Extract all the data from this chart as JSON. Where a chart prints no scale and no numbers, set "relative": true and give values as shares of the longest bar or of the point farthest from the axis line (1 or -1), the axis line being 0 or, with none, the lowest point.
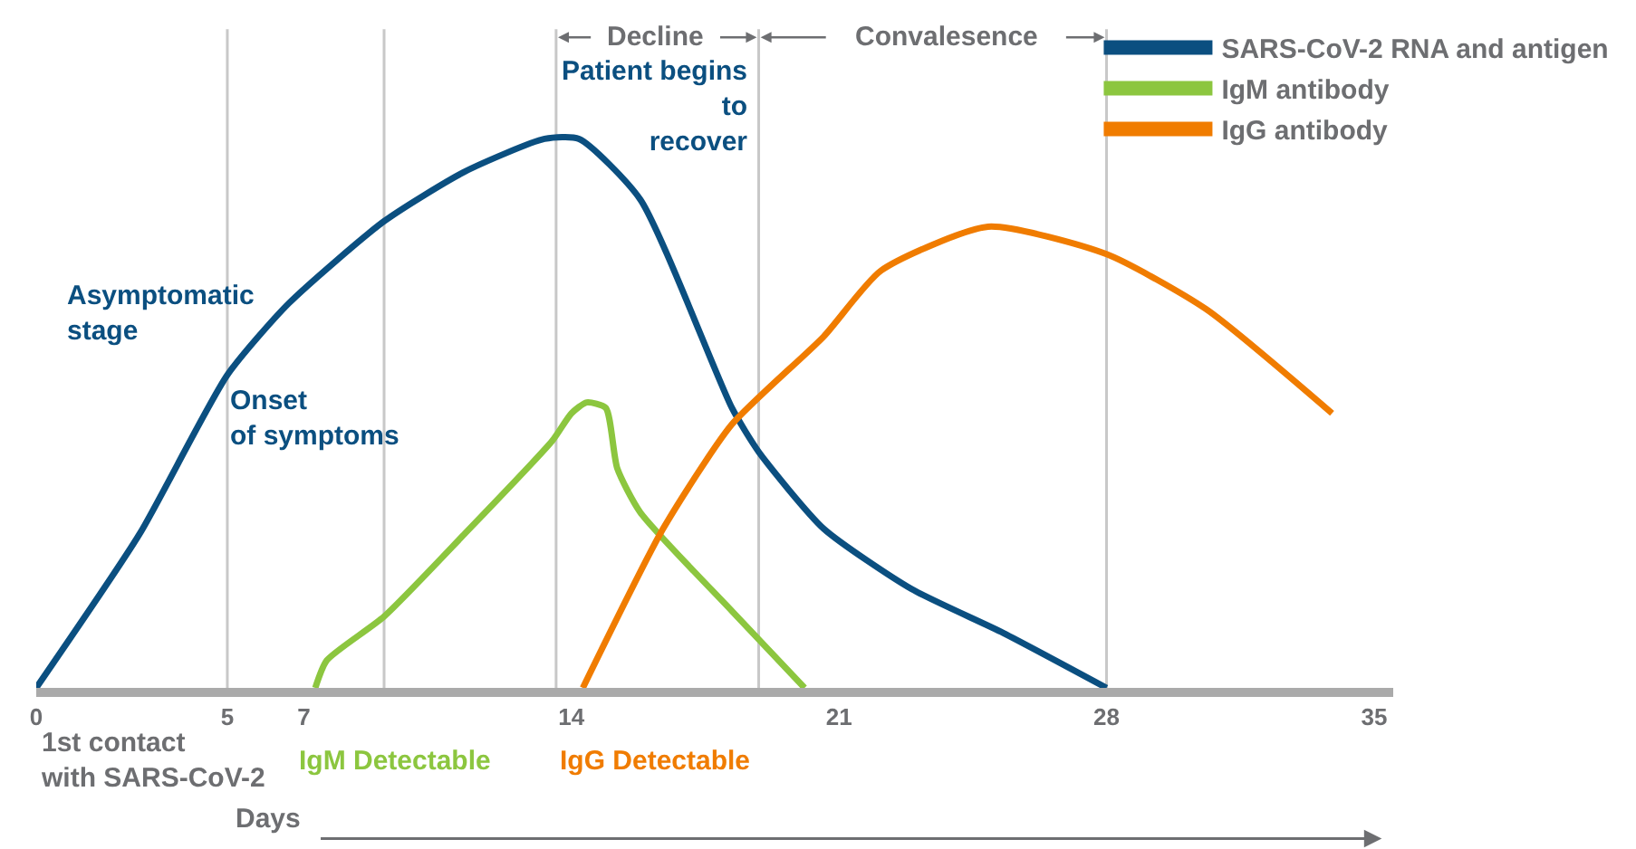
{
  "chart_data": {
    "type": "line",
    "relative": true,
    "xlabel": "Days",
    "xlim": [
      0,
      35.5
    ],
    "xticks": [
      0,
      5,
      7,
      14,
      21,
      28,
      35
    ],
    "series": [
      {
        "name": "SARS-CoV-2 RNA and antigen",
        "color": "#0b4f80",
        "x": [
          0,
          2.7,
          5.0,
          6.6,
          9.1,
          11.2,
          13.3,
          14.2,
          15.8,
          18.2,
          18.9,
          20.6,
          22.9,
          25.3,
          28
        ],
        "values": [
          0,
          0.28,
          0.57,
          0.7,
          0.85,
          0.94,
          1.0,
          1.0,
          0.89,
          0.51,
          0.43,
          0.29,
          0.18,
          0.1,
          0
        ]
      },
      {
        "name": "IgM antibody",
        "color": "#8cc63f",
        "x": [
          7.3,
          7.6,
          9.1,
          11.2,
          13.5,
          14.0,
          14.4,
          14.9,
          15.2,
          15.8,
          18.2,
          20.1
        ],
        "values": [
          0,
          0.05,
          0.13,
          0.28,
          0.45,
          0.5,
          0.52,
          0.51,
          0.4,
          0.32,
          0.14,
          0
        ]
      },
      {
        "name": "IgG antibody",
        "color": "#f07c00",
        "x": [
          14.3,
          16.4,
          18.2,
          20.6,
          22.1,
          24.9,
          28,
          30.6,
          33.9
        ],
        "values": [
          0,
          0.29,
          0.48,
          0.64,
          0.76,
          0.84,
          0.79,
          0.69,
          0.5
        ]
      }
    ],
    "ref_lines": [
      {
        "axis": "x",
        "value": 5,
        "color": "#c8c8c8"
      },
      {
        "axis": "x",
        "value": 9.1,
        "color": "#c8c8c8"
      },
      {
        "axis": "x",
        "value": 13.6,
        "color": "#c8c8c8"
      },
      {
        "axis": "x",
        "value": 18.9,
        "color": "#c8c8c8"
      },
      {
        "axis": "x",
        "value": 28,
        "color": "#c8c8c8"
      }
    ],
    "annotations": [
      "Asymptomatic stage",
      "Onset of symptoms",
      "Patient begins to recover",
      "Decline",
      "Convalesence",
      "1st contact with SARS-CoV-2",
      "IgM Detectable",
      "IgG Detectable"
    ],
    "legend": "top right",
    "grid": false,
    "marker": "none",
    "line_style": "solid"
  }
}
